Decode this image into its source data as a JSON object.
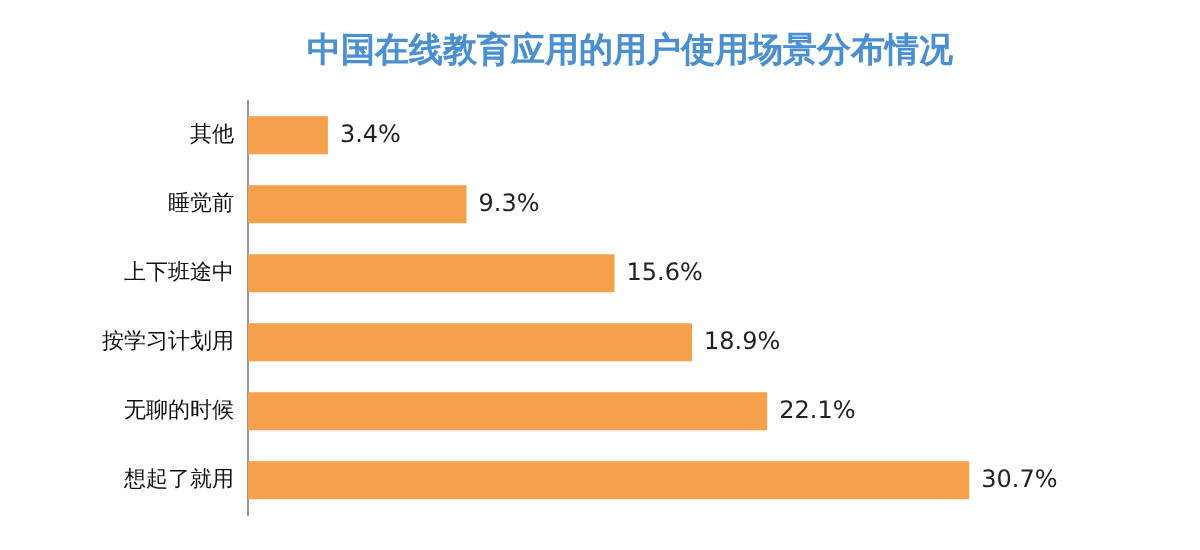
{
  "chart_data": {
    "type": "bar",
    "title": "中国在线教育应用的用户使用场景分布情况",
    "orientation": "horizontal",
    "categories": [
      "其他",
      "睡觉前",
      "上下班途中",
      "按学习计划用",
      "无聊的时候",
      "想起了就用"
    ],
    "values": [
      3.4,
      9.3,
      15.6,
      18.9,
      22.1,
      30.7
    ],
    "value_labels": [
      "3.4%",
      "9.3%",
      "15.6%",
      "18.9%",
      "22.1%",
      "30.7%"
    ],
    "color": "#f5a04a",
    "tick_labels": "y",
    "legend": false
  }
}
